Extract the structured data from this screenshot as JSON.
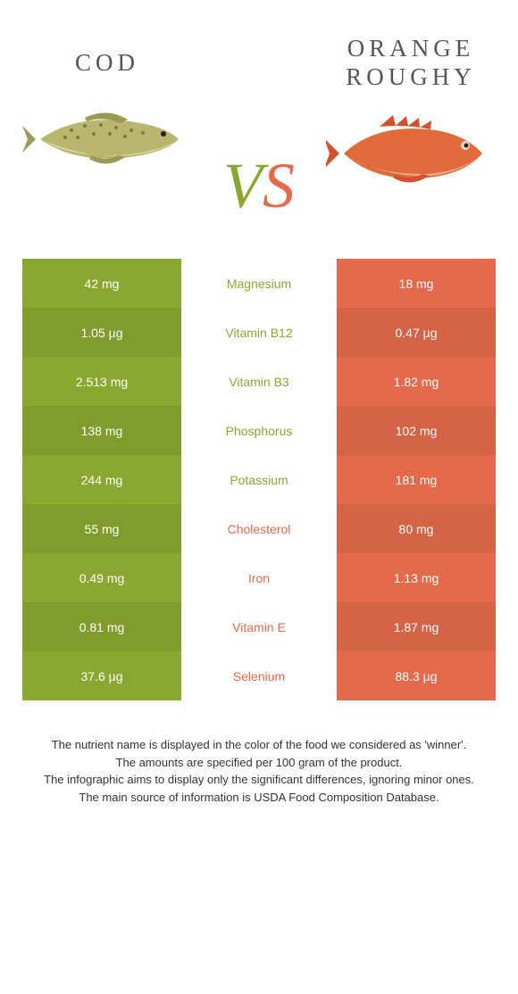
{
  "left": {
    "name": "Cod",
    "color": "#8aa82f",
    "fish": {
      "body": "#b9b66f",
      "belly": "#e8e3c4",
      "spots": "#7a7a3b",
      "fin": "#9a9a55"
    }
  },
  "right": {
    "name": "Orange roughy",
    "color": "#e56a4b",
    "fish": {
      "body": "#e06a3b",
      "belly": "#f2a68a",
      "fin": "#d4512e",
      "eye": "#222222"
    }
  },
  "vs": {
    "v": "V",
    "s": "S"
  },
  "rows": [
    {
      "label": "Magnesium",
      "left": "42 mg",
      "right": "18 mg",
      "winner": "left"
    },
    {
      "label": "Vitamin B12",
      "left": "1.05 µg",
      "right": "0.47 µg",
      "winner": "left"
    },
    {
      "label": "Vitamin B3",
      "left": "2.513 mg",
      "right": "1.82 mg",
      "winner": "left"
    },
    {
      "label": "Phosphorus",
      "left": "138 mg",
      "right": "102 mg",
      "winner": "left"
    },
    {
      "label": "Potassium",
      "left": "244 mg",
      "right": "181 mg",
      "winner": "left"
    },
    {
      "label": "Cholesterol",
      "left": "55 mg",
      "right": "80 mg",
      "winner": "right"
    },
    {
      "label": "Iron",
      "left": "0.49 mg",
      "right": "1.13 mg",
      "winner": "right"
    },
    {
      "label": "Vitamin E",
      "left": "0.81 mg",
      "right": "1.87 mg",
      "winner": "right"
    },
    {
      "label": "Selenium",
      "left": "37.6 µg",
      "right": "88.3 µg",
      "winner": "right"
    }
  ],
  "row_alt_darken": 0.93,
  "footer_lines": [
    "The nutrient name is displayed in the color of the food we considered as 'winner'.",
    "The amounts are specified per 100 gram of the product.",
    "The infographic aims to display only the significant differences, ignoring minor ones.",
    "The main source of information is USDA Food Composition Database."
  ]
}
